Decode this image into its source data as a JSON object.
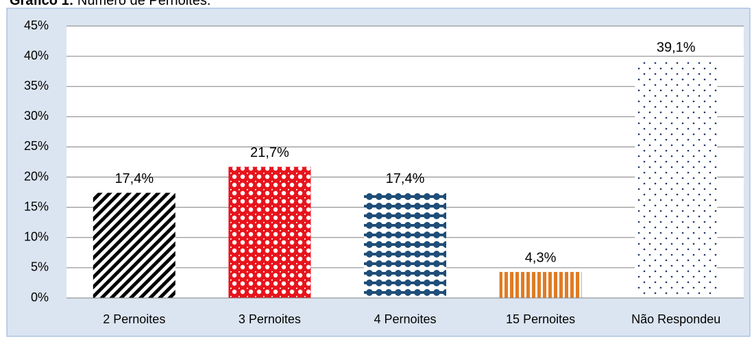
{
  "chart_data": {
    "type": "bar",
    "title_prefix": "Gráfico 1:",
    "title": "Número de Pernoites.",
    "categories": [
      "2 Pernoites",
      "3 Pernoites",
      "4 Pernoites",
      "15 Pernoites",
      "Não Respondeu"
    ],
    "values": [
      17.4,
      21.7,
      17.4,
      4.3,
      39.1
    ],
    "value_labels": [
      "17,4%",
      "21,7%",
      "17,4%",
      "4,3%",
      "39,1%"
    ],
    "colors": [
      "#000000",
      "#e8141c",
      "#1f4e79",
      "#e07b24",
      "#1f3864"
    ],
    "patterns": [
      "diagonal",
      "checker",
      "dots",
      "vertical",
      "sparse-dots"
    ],
    "ylim": [
      0,
      45
    ],
    "yticks": [
      {
        "value": 0,
        "label": "0%"
      },
      {
        "value": 5,
        "label": "5%"
      },
      {
        "value": 10,
        "label": "10%"
      },
      {
        "value": 15,
        "label": "15%"
      },
      {
        "value": 20,
        "label": "20%"
      },
      {
        "value": 25,
        "label": "25%"
      },
      {
        "value": 30,
        "label": "30%"
      },
      {
        "value": 35,
        "label": "35%"
      },
      {
        "value": 40,
        "label": "40%"
      },
      {
        "value": 45,
        "label": "45%"
      }
    ],
    "grid": true
  }
}
